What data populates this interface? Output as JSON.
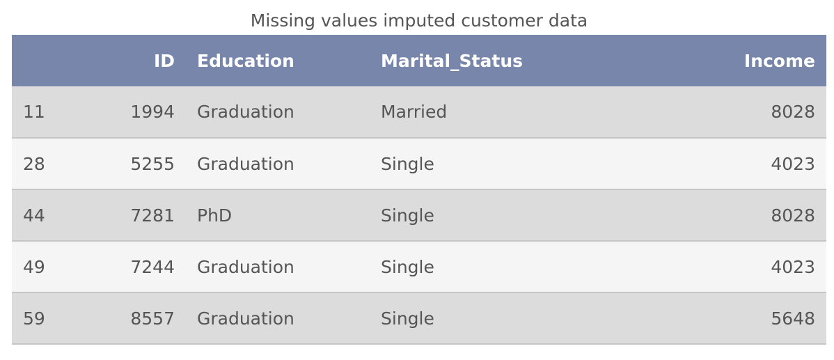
{
  "chart_data": {
    "type": "table",
    "title": "Missing values imputed customer data",
    "columns": [
      "",
      "ID",
      "Education",
      "Marital_Status",
      "Income"
    ],
    "rows": [
      [
        "11",
        "1994",
        "Graduation",
        "Married",
        "8028"
      ],
      [
        "28",
        "5255",
        "Graduation",
        "Single",
        "4023"
      ],
      [
        "44",
        "7281",
        "PhD",
        "Single",
        "8028"
      ],
      [
        "49",
        "7244",
        "Graduation",
        "Single",
        "4023"
      ],
      [
        "59",
        "8557",
        "Graduation",
        "Single",
        "5648"
      ]
    ]
  },
  "colors": {
    "header_bg": "#7786aa",
    "row_odd_bg": "#dcdcdc",
    "row_even_bg": "#f5f5f5"
  }
}
